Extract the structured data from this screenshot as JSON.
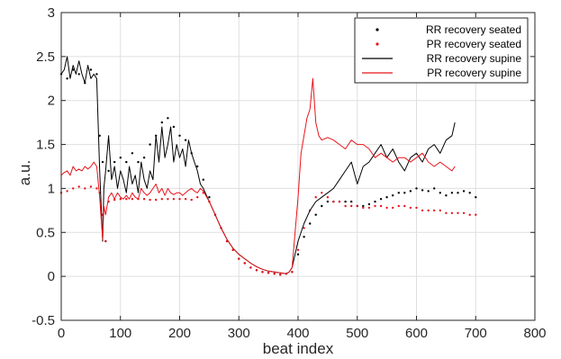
{
  "chart_data": {
    "type": "line",
    "title": "",
    "xlabel": "beat index",
    "ylabel": "a.u.",
    "xlim": [
      0,
      800
    ],
    "ylim": [
      -0.5,
      3
    ],
    "x_ticks": [
      0,
      100,
      200,
      300,
      400,
      500,
      600,
      700,
      800
    ],
    "y_ticks": [
      -0.5,
      0,
      0.5,
      1,
      1.5,
      2,
      2.5,
      3
    ],
    "x_tick_labels": [
      "0",
      "100",
      "200",
      "300",
      "400",
      "500",
      "600",
      "700",
      "800"
    ],
    "y_tick_labels": [
      "-0.5",
      "0",
      "0.5",
      "1",
      "1.5",
      "2",
      "2.5",
      "3"
    ],
    "grid": true,
    "legend_position": "top-right",
    "series": [
      {
        "name": "RR recovery seated",
        "style": "dots",
        "color": "#000000",
        "x": [
          0,
          10,
          20,
          30,
          40,
          50,
          60,
          65,
          70,
          75,
          80,
          90,
          100,
          110,
          120,
          130,
          140,
          150,
          160,
          170,
          180,
          190,
          200,
          210,
          220,
          230,
          240,
          250,
          260,
          270,
          280,
          290,
          300,
          310,
          320,
          330,
          340,
          350,
          360,
          370,
          380,
          390,
          400,
          410,
          420,
          430,
          440,
          450,
          460,
          470,
          480,
          490,
          500,
          510,
          520,
          530,
          540,
          550,
          560,
          570,
          580,
          590,
          600,
          610,
          620,
          630,
          640,
          650,
          660,
          670,
          680,
          690,
          700
        ],
        "y": [
          2.3,
          2.25,
          2.35,
          2.3,
          2.2,
          2.35,
          2.3,
          1.6,
          1.3,
          0.4,
          1.2,
          1.3,
          1.35,
          1.3,
          1.4,
          1.3,
          1.35,
          1.5,
          1.6,
          1.75,
          1.8,
          1.7,
          1.6,
          1.55,
          1.4,
          1.25,
          1.1,
          0.9,
          0.7,
          0.55,
          0.4,
          0.3,
          0.2,
          0.15,
          0.1,
          0.07,
          0.05,
          0.04,
          0.03,
          0.02,
          0.03,
          0.05,
          0.25,
          0.45,
          0.6,
          0.7,
          0.8,
          0.85,
          0.85,
          0.85,
          0.85,
          0.85,
          0.8,
          0.8,
          0.82,
          0.85,
          0.88,
          0.9,
          0.92,
          0.95,
          0.95,
          0.97,
          1.0,
          0.98,
          0.97,
          1.0,
          0.95,
          0.92,
          0.95,
          0.95,
          0.97,
          0.95,
          0.9
        ]
      },
      {
        "name": "PR recovery seated",
        "style": "dots",
        "color": "#e8141b",
        "x": [
          0,
          10,
          20,
          30,
          40,
          50,
          60,
          65,
          70,
          75,
          80,
          90,
          100,
          110,
          120,
          130,
          140,
          150,
          160,
          170,
          180,
          190,
          200,
          210,
          220,
          230,
          240,
          250,
          260,
          270,
          280,
          290,
          300,
          310,
          320,
          330,
          340,
          350,
          360,
          370,
          380,
          390,
          400,
          410,
          420,
          430,
          440,
          450,
          460,
          470,
          480,
          490,
          500,
          510,
          520,
          530,
          540,
          550,
          560,
          570,
          580,
          590,
          600,
          610,
          620,
          630,
          640,
          650,
          660,
          670,
          680,
          690,
          700
        ],
        "y": [
          0.95,
          0.97,
          1.0,
          1.02,
          1.0,
          1.02,
          1.0,
          0.95,
          0.7,
          0.4,
          0.85,
          0.87,
          0.88,
          0.88,
          0.88,
          0.88,
          0.88,
          0.87,
          0.87,
          0.88,
          0.88,
          0.88,
          0.88,
          0.88,
          0.87,
          0.9,
          0.95,
          0.85,
          0.7,
          0.55,
          0.4,
          0.3,
          0.2,
          0.15,
          0.1,
          0.07,
          0.05,
          0.04,
          0.03,
          0.02,
          0.03,
          0.05,
          0.3,
          0.55,
          0.75,
          0.9,
          0.95,
          0.9,
          0.85,
          0.85,
          0.8,
          0.8,
          0.8,
          0.78,
          0.78,
          0.8,
          0.8,
          0.78,
          0.78,
          0.8,
          0.8,
          0.78,
          0.78,
          0.75,
          0.75,
          0.75,
          0.75,
          0.72,
          0.72,
          0.72,
          0.72,
          0.7,
          0.7
        ]
      },
      {
        "name": "RR recovery supine",
        "style": "line",
        "color": "#000000",
        "x": [
          0,
          5,
          10,
          15,
          20,
          25,
          30,
          35,
          40,
          45,
          50,
          55,
          60,
          65,
          70,
          72,
          75,
          80,
          85,
          90,
          95,
          100,
          105,
          110,
          115,
          120,
          125,
          130,
          135,
          140,
          145,
          150,
          155,
          160,
          165,
          170,
          175,
          180,
          185,
          190,
          195,
          200,
          205,
          210,
          215,
          220,
          225,
          230,
          235,
          240,
          250,
          260,
          270,
          280,
          290,
          300,
          310,
          320,
          330,
          340,
          350,
          360,
          370,
          380,
          385,
          390,
          395,
          400,
          410,
          420,
          430,
          440,
          450,
          460,
          470,
          480,
          490,
          500,
          510,
          520,
          530,
          540,
          550,
          560,
          570,
          580,
          590,
          600,
          610,
          620,
          630,
          640,
          650,
          660,
          665
        ],
        "y": [
          2.3,
          2.35,
          2.5,
          2.25,
          2.4,
          2.3,
          2.45,
          2.3,
          2.2,
          2.4,
          2.25,
          2.3,
          2.25,
          1.2,
          0.4,
          1.0,
          1.2,
          1.6,
          1.1,
          1.25,
          1.0,
          1.2,
          1.1,
          0.95,
          1.25,
          1.05,
          1.15,
          0.95,
          1.3,
          1.1,
          1.0,
          1.2,
          1.1,
          1.6,
          1.3,
          1.7,
          1.35,
          1.5,
          1.7,
          1.3,
          1.5,
          1.35,
          1.45,
          1.25,
          1.55,
          1.4,
          1.3,
          1.2,
          1.05,
          1.0,
          0.85,
          0.7,
          0.55,
          0.42,
          0.32,
          0.25,
          0.2,
          0.15,
          0.11,
          0.08,
          0.06,
          0.05,
          0.04,
          0.03,
          0.05,
          0.1,
          0.25,
          0.4,
          0.6,
          0.75,
          0.85,
          0.9,
          0.95,
          1.0,
          1.1,
          1.2,
          1.3,
          1.05,
          1.25,
          1.3,
          1.4,
          1.5,
          1.35,
          1.45,
          1.3,
          1.2,
          1.35,
          1.4,
          1.3,
          1.45,
          1.5,
          1.4,
          1.55,
          1.6,
          1.75
        ]
      },
      {
        "name": "PR recovery supine",
        "style": "line",
        "color": "#e8141b",
        "x": [
          0,
          5,
          10,
          15,
          20,
          25,
          30,
          35,
          40,
          45,
          50,
          55,
          60,
          65,
          70,
          72,
          75,
          80,
          85,
          90,
          95,
          100,
          105,
          110,
          115,
          120,
          125,
          130,
          135,
          140,
          145,
          150,
          155,
          160,
          165,
          170,
          175,
          180,
          185,
          190,
          195,
          200,
          205,
          210,
          215,
          220,
          225,
          230,
          235,
          240,
          250,
          260,
          270,
          280,
          290,
          300,
          310,
          320,
          330,
          340,
          350,
          360,
          370,
          380,
          385,
          390,
          395,
          400,
          405,
          410,
          415,
          420,
          425,
          430,
          435,
          440,
          450,
          460,
          470,
          480,
          490,
          500,
          510,
          520,
          530,
          540,
          550,
          560,
          570,
          580,
          590,
          600,
          610,
          620,
          630,
          640,
          650,
          660,
          665
        ],
        "y": [
          1.15,
          1.18,
          1.2,
          1.15,
          1.25,
          1.2,
          1.22,
          1.2,
          1.25,
          1.22,
          1.25,
          1.3,
          1.25,
          0.9,
          0.42,
          0.8,
          0.7,
          0.9,
          0.95,
          0.88,
          0.95,
          0.9,
          0.88,
          0.92,
          0.88,
          0.95,
          0.9,
          0.88,
          1.0,
          0.95,
          0.92,
          0.95,
          1.0,
          1.05,
          0.95,
          1.0,
          0.92,
          1.0,
          0.95,
          0.93,
          0.95,
          0.95,
          0.92,
          0.95,
          0.98,
          1.0,
          0.97,
          0.95,
          1.0,
          0.97,
          0.85,
          0.7,
          0.55,
          0.42,
          0.32,
          0.25,
          0.2,
          0.15,
          0.11,
          0.08,
          0.06,
          0.05,
          0.04,
          0.03,
          0.05,
          0.1,
          0.5,
          0.9,
          1.4,
          1.6,
          1.8,
          1.9,
          2.25,
          1.75,
          1.6,
          1.55,
          1.58,
          1.55,
          1.5,
          1.45,
          1.55,
          1.5,
          1.5,
          1.45,
          1.35,
          1.4,
          1.35,
          1.3,
          1.35,
          1.35,
          1.3,
          1.35,
          1.4,
          1.3,
          1.25,
          1.3,
          1.25,
          1.2,
          1.25
        ]
      }
    ]
  },
  "colors": {
    "axis": "#262626",
    "grid": "#dfdfdf",
    "black_series": "#000000",
    "red_series": "#e8141b"
  }
}
